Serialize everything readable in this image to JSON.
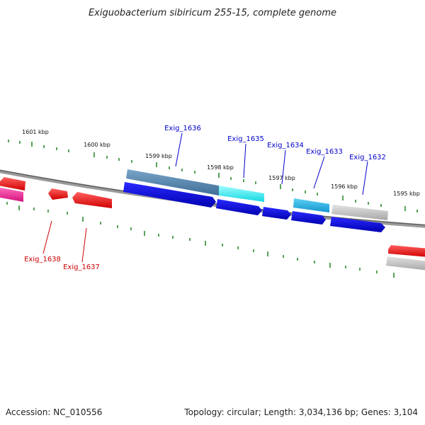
{
  "title": "Exiguobacterium sibiricum 255-15, complete genome",
  "footer": {
    "accession": "Accession: NC_010556",
    "topology": "Topology: circular; Length: 3,034,136 bp; Genes: 3,104"
  },
  "colors": {
    "backbone": "#7a7a7a",
    "tick": "#2e8b2e",
    "label_top": "#0000cc",
    "label_bottom": "#cc0000"
  },
  "scale_labels": [
    "1601 kbp",
    "1600 kbp",
    "1599 kbp",
    "1598 kbp",
    "1597 kbp",
    "1596 kbp",
    "1595 kbp"
  ],
  "gene_labels_top": [
    "Exig_1636",
    "Exig_1635",
    "Exig_1634",
    "Exig_1633",
    "Exig_1632"
  ],
  "gene_labels_bottom": [
    "Exig_1638",
    "Exig_1637"
  ]
}
